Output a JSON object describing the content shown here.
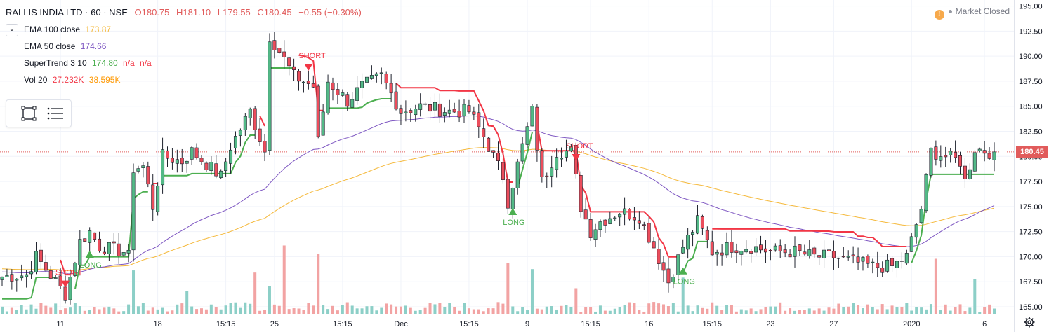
{
  "header": {
    "symbol": "RALLIS INDIA LTD · 60 · NSE",
    "open": "O180.75",
    "high": "H181.10",
    "low": "L179.55",
    "close": "C180.45",
    "change": "−0.55 (−0.30%)"
  },
  "legend": {
    "ema100_label": "EMA 100 close",
    "ema100_value": "173.87",
    "ema50_label": "EMA 50 close",
    "ema50_value": "174.66",
    "supertrend_label": "SuperTrend 3 10",
    "supertrend_value": "174.80",
    "supertrend_na1": "n/a",
    "supertrend_na2": "n/a",
    "vol_label": "Vol 20",
    "vol_value1": "27.232K",
    "vol_value2": "38.595K"
  },
  "market_status": {
    "icon": "exclamation-icon",
    "text": "Market Closed"
  },
  "last_price": "180.45",
  "colors": {
    "up": "#53b987",
    "down": "#eb4d5c",
    "ema100": "#f5b93b",
    "ema50": "#7e57c2",
    "st_up": "#4caf50",
    "st_down": "#f23645",
    "vol_up": "#8ccfc7",
    "vol_down": "#f2a3a3",
    "ohlc_value": "#e15b5b",
    "ema100_value": "#f5b93b",
    "ema50_value": "#7e57c2",
    "st_value": "#4caf50",
    "na_value": "#f23645",
    "vol_value1": "#f23645",
    "vol_value2": "#ff9800"
  },
  "chart_data": {
    "type": "candlestick",
    "ylim": [
      164.3,
      195.6
    ],
    "y_ticks": [
      "195.00",
      "192.50",
      "190.00",
      "187.50",
      "185.00",
      "182.50",
      "180.00",
      "177.50",
      "175.00",
      "172.50",
      "170.00",
      "167.50",
      "165.00"
    ],
    "x_labels": [
      "11",
      "18",
      "15:15",
      "25",
      "15:15",
      "Dec",
      "15:15",
      "9",
      "15:15",
      "16",
      "15:15",
      "23",
      "27",
      "2020",
      "6"
    ],
    "x_label_bars": [
      12,
      32,
      46,
      56,
      70,
      82,
      96,
      108,
      121,
      133,
      146,
      158,
      171,
      187,
      202
    ],
    "num_bars": 205,
    "anchors": [
      [
        0,
        168
      ],
      [
        5,
        168.2
      ],
      [
        7,
        170
      ],
      [
        11,
        167.5
      ],
      [
        13,
        166.2
      ],
      [
        16,
        171.5
      ],
      [
        18,
        172.5
      ],
      [
        20,
        171
      ],
      [
        25,
        170.5
      ],
      [
        26,
        170
      ],
      [
        27,
        178.8
      ],
      [
        29,
        179
      ],
      [
        31,
        175
      ],
      [
        33,
        180
      ],
      [
        37,
        179.5
      ],
      [
        39,
        180.5
      ],
      [
        45,
        178
      ],
      [
        47,
        181
      ],
      [
        51,
        184.5
      ],
      [
        54,
        180.5
      ],
      [
        55,
        192
      ],
      [
        57,
        190.5
      ],
      [
        60,
        188
      ],
      [
        64,
        187
      ],
      [
        65,
        181.5
      ],
      [
        67,
        187.5
      ],
      [
        71,
        185.5
      ],
      [
        74,
        187
      ],
      [
        78,
        188
      ],
      [
        82,
        184.5
      ],
      [
        86,
        185
      ],
      [
        92,
        184.5
      ],
      [
        96,
        184.5
      ],
      [
        99,
        182
      ],
      [
        103,
        178
      ],
      [
        104,
        175.5
      ],
      [
        107,
        181
      ],
      [
        109,
        184.5
      ],
      [
        111,
        177.5
      ],
      [
        114,
        180.5
      ],
      [
        117,
        180.5
      ],
      [
        119,
        175
      ],
      [
        121,
        172.5
      ],
      [
        123,
        173.5
      ],
      [
        127,
        174.5
      ],
      [
        131,
        174
      ],
      [
        134,
        171
      ],
      [
        137,
        167.5
      ],
      [
        140,
        171
      ],
      [
        143,
        173.5
      ],
      [
        146,
        170.5
      ],
      [
        150,
        171
      ],
      [
        154,
        171
      ],
      [
        158,
        170.5
      ],
      [
        163,
        170.5
      ],
      [
        167,
        170
      ],
      [
        171,
        170
      ],
      [
        175,
        169.5
      ],
      [
        179,
        169
      ],
      [
        183,
        169
      ],
      [
        186,
        170
      ],
      [
        189,
        174.8
      ],
      [
        191,
        180.5
      ],
      [
        197,
        179.5
      ],
      [
        198,
        177.5
      ],
      [
        200,
        180.8
      ],
      [
        203,
        180.45
      ]
    ],
    "series": [
      {
        "name": "EMA 100 close",
        "values_start": 168.8,
        "values_end": 173.87
      },
      {
        "name": "EMA 50 close",
        "values_start": 168.5,
        "values_end": 174.66
      },
      {
        "name": "SuperTrend 3 10",
        "values_end": 174.8
      }
    ],
    "signals": [
      {
        "text": "SHORT",
        "bar": 13,
        "type": "short"
      },
      {
        "text": "LONG",
        "bar": 18,
        "type": "long"
      },
      {
        "text": "SHORT",
        "bar": 63,
        "type": "short"
      },
      {
        "text": "LONG",
        "bar": 105,
        "type": "long"
      },
      {
        "text": "SHORT",
        "bar": 118,
        "type": "short"
      },
      {
        "text": "LONG",
        "bar": 140,
        "type": "long"
      }
    ],
    "volume": {
      "ma_value": "27.232K",
      "last_value": "38.595K"
    }
  }
}
